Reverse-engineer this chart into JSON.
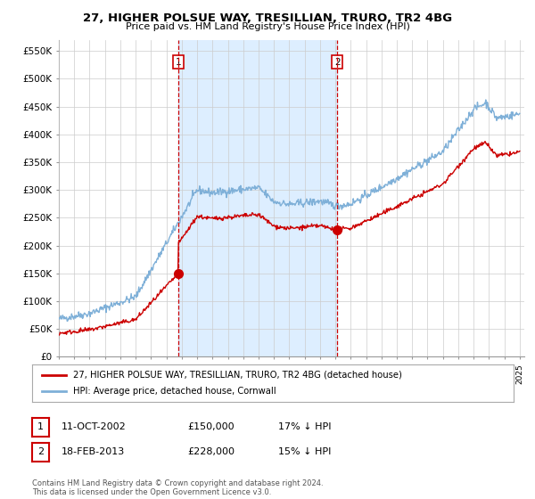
{
  "title": "27, HIGHER POLSUE WAY, TRESILLIAN, TRURO, TR2 4BG",
  "subtitle": "Price paid vs. HM Land Registry's House Price Index (HPI)",
  "ylim": [
    0,
    570000
  ],
  "yticks": [
    0,
    50000,
    100000,
    150000,
    200000,
    250000,
    300000,
    350000,
    400000,
    450000,
    500000,
    550000
  ],
  "ytick_labels": [
    "£0",
    "£50K",
    "£100K",
    "£150K",
    "£200K",
    "£250K",
    "£300K",
    "£350K",
    "£400K",
    "£450K",
    "£500K",
    "£550K"
  ],
  "xstart_year": 1995,
  "xend_year": 2025,
  "sale1_date": 2002.78,
  "sale1_price": 150000,
  "sale1_label": "1",
  "sale1_date_text": "11-OCT-2002",
  "sale1_price_text": "£150,000",
  "sale1_hpi_text": "17% ↓ HPI",
  "sale2_date": 2013.12,
  "sale2_price": 228000,
  "sale2_label": "2",
  "sale2_date_text": "18-FEB-2013",
  "sale2_price_text": "£228,000",
  "sale2_hpi_text": "15% ↓ HPI",
  "property_line_color": "#cc0000",
  "hpi_line_color": "#7fb0d8",
  "vline_color": "#cc0000",
  "shade_color": "#ddeeff",
  "grid_color": "#cccccc",
  "legend_property": "27, HIGHER POLSUE WAY, TRESILLIAN, TRURO, TR2 4BG (detached house)",
  "legend_hpi": "HPI: Average price, detached house, Cornwall",
  "footnote": "Contains HM Land Registry data © Crown copyright and database right 2024.\nThis data is licensed under the Open Government Licence v3.0.",
  "background_color": "#ffffff"
}
